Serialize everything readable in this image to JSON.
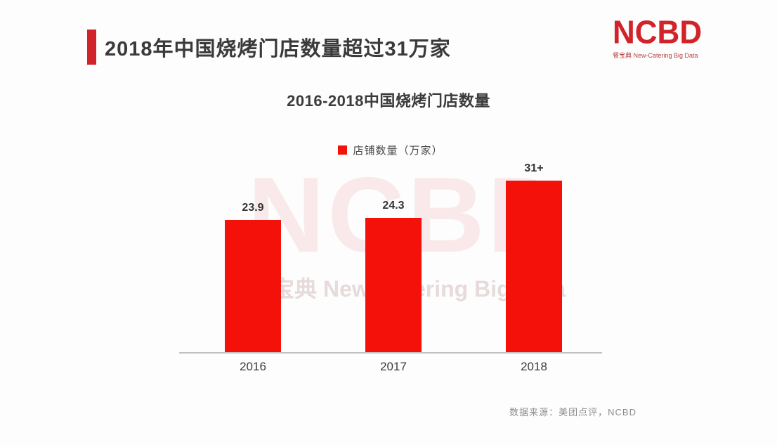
{
  "header": {
    "title": "2018年中国烧烤门店数量超过31万家",
    "accent_color": "#d2232a"
  },
  "logo": {
    "name": "NCBD",
    "subtitle": "餐宝典 New-Catering Big Data",
    "color": "#d2232a"
  },
  "chart_data": {
    "type": "bar",
    "title": "2016-2018中国烧烤门店数量",
    "categories": [
      "2016",
      "2017",
      "2018"
    ],
    "values": [
      23.9,
      24.3,
      31
    ],
    "value_labels": [
      "23.9",
      "24.3",
      "31+"
    ],
    "series_name": "店铺数量（万家）",
    "legend": [
      {
        "label": "店铺数量（万家）",
        "color": "#f41109"
      }
    ],
    "legend_position": "top-center",
    "bar_color": "#f41109",
    "xlabel": "",
    "ylabel": "",
    "ylim": [
      0,
      34
    ],
    "grid": false,
    "axis_color": "#c2c2c2"
  },
  "watermark": {
    "line1": "NCBD",
    "line2": "餐宝典 New-Catering Big Data"
  },
  "footer": {
    "source": "数据来源：美团点评，NCBD"
  }
}
